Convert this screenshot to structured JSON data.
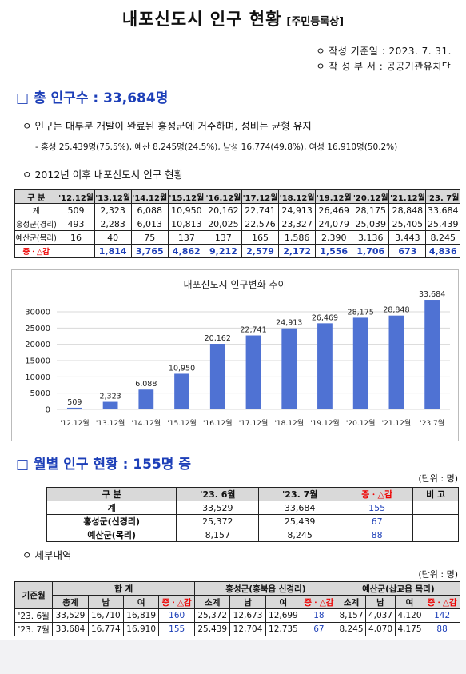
{
  "title": {
    "main": "내포신도시 인구 현황",
    "sub": "[주민등록상]"
  },
  "meta": {
    "date_line": "ㅇ 작성 기준일 : 2023. 7. 31.",
    "dept_line": "ㅇ 작 성 부 서 : 공공기관유치단"
  },
  "section1": {
    "heading": "□ 총 인구수 : 33,684명",
    "bullet": "ㅇ  인구는 대부분 개발이 완료된 홍성군에 거주하며, 성비는 균형 유지",
    "detail": "- 홍성 25,439명(75.5%), 예산 8,245명(24.5%), 남성 16,774(49.8%), 여성 16,910명(50.2%)",
    "table_title": "ㅇ 2012년 이후 내포신도시 인구 현황"
  },
  "yearly_table": {
    "header_label": "구  분",
    "columns": [
      "'12.12월",
      "'13.12월",
      "'14.12월",
      "'15.12월",
      "'16.12월",
      "'17.12월",
      "'18.12월",
      "'19.12월",
      "'20.12월",
      "'21.12월",
      "'23. 7월"
    ],
    "rows": [
      {
        "label": "계",
        "values": [
          "509",
          "2,323",
          "6,088",
          "10,950",
          "20,162",
          "22,741",
          "24,913",
          "26,469",
          "28,175",
          "28,848",
          "33,684"
        ]
      },
      {
        "label": "홍성군(경리)",
        "values": [
          "493",
          "2,283",
          "6,013",
          "10,813",
          "20,025",
          "22,576",
          "23,327",
          "24,079",
          "25,039",
          "25,405",
          "25,439"
        ]
      },
      {
        "label": "예산군(목리)",
        "values": [
          "16",
          "40",
          "75",
          "137",
          "137",
          "165",
          "1,586",
          "2,390",
          "3,136",
          "3,443",
          "8,245"
        ]
      }
    ],
    "diff_row": {
      "label": "증ㆍ△감",
      "values": [
        "",
        "1,814",
        "3,765",
        "4,862",
        "9,212",
        "2,579",
        "2,172",
        "1,556",
        "1,706",
        "673",
        "4,836"
      ]
    }
  },
  "chart_data": {
    "type": "bar",
    "title": "내포신도시 인구변화 추이",
    "categories": [
      "'12.12월",
      "'13.12월",
      "'14.12월",
      "'15.12월",
      "'16.12월",
      "'17.12월",
      "'18.12월",
      "'19.12월",
      "'20.12월",
      "'21.12월",
      "'23.7월"
    ],
    "values": [
      509,
      2323,
      6088,
      10950,
      20162,
      22741,
      24913,
      26469,
      28175,
      28848,
      33684
    ],
    "value_labels": [
      "509",
      "2,323",
      "6,088",
      "10,950",
      "20,162",
      "22,741",
      "24,913",
      "26,469",
      "28,175",
      "28,848",
      "33,684"
    ],
    "yticks": [
      "30000",
      "25000",
      "20000",
      "15000",
      "10000",
      "5000",
      "0"
    ],
    "ylim": [
      0,
      30000
    ],
    "bar_color": "#4f72d3",
    "grid": true
  },
  "section2": {
    "heading": "□ 월별 인구 현황 : 155명 증",
    "unit": "(단위 : 명)"
  },
  "monthly_table": {
    "headers": [
      "구  분",
      "'23. 6월",
      "'23. 7월",
      "증ㆍ△감",
      "비  고"
    ],
    "rows": [
      {
        "label": "계",
        "jun": "33,529",
        "jul": "33,684",
        "diff": "155",
        "note": ""
      },
      {
        "label": "홍성군(신경리)",
        "jun": "25,372",
        "jul": "25,439",
        "diff": "67",
        "note": ""
      },
      {
        "label": "예산군(목리)",
        "jun": "8,157",
        "jul": "8,245",
        "diff": "88",
        "note": ""
      }
    ]
  },
  "section3": {
    "bullet": "ㅇ 세부내역",
    "unit": "(단위 : 명)"
  },
  "detail_table": {
    "corner": "기준월",
    "groups": [
      "합  계",
      "홍성군(홍북읍 신경리)",
      "예산군(삽교읍 목리)"
    ],
    "sub_total": [
      "총계",
      "남",
      "여",
      "증ㆍ△감"
    ],
    "sub_region": [
      "소계",
      "남",
      "여",
      "증ㆍ△감"
    ],
    "rows": [
      {
        "month": "'23. 6월",
        "values": [
          "33,529",
          "16,710",
          "16,819",
          "160",
          "25,372",
          "12,673",
          "12,699",
          "18",
          "8,157",
          "4,037",
          "4,120",
          "142"
        ]
      },
      {
        "month": "'23. 7월",
        "values": [
          "33,684",
          "16,774",
          "16,910",
          "155",
          "25,439",
          "12,704",
          "12,735",
          "67",
          "8,245",
          "4,070",
          "4,175",
          "88"
        ]
      }
    ]
  }
}
